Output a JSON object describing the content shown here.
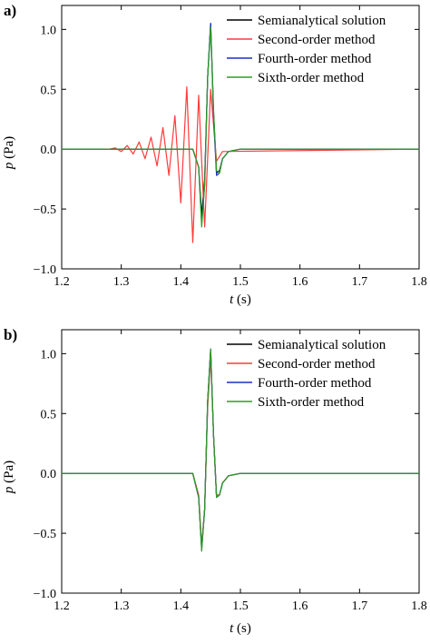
{
  "colors": {
    "semianalytical": "#000000",
    "second_order": "#ff3b3b",
    "fourth_order": "#1a2fc8",
    "sixth_order": "#2e9e22"
  },
  "chart_data": [
    {
      "type": "line",
      "panel_label": "a)",
      "xlabel_var": "t",
      "xlabel_unit": "(s)",
      "ylabel_var": "p",
      "ylabel_unit": "(Pa)",
      "xlim": [
        1.2,
        1.8
      ],
      "ylim": [
        -1.0,
        1.2
      ],
      "xticks": [
        1.2,
        1.3,
        1.4,
        1.5,
        1.6,
        1.7,
        1.8
      ],
      "xtick_labels": [
        "1.2",
        "1.3",
        "1.4",
        "1.5",
        "1.6",
        "1.7",
        "1.8"
      ],
      "yticks": [
        1.0,
        0.5,
        0.0,
        -0.5,
        -1.0
      ],
      "ytick_labels": [
        "1.0",
        "0.5",
        "0.0",
        "−0.5",
        "−1.0"
      ],
      "legend_position": "top-right",
      "series": [
        {
          "name": "Semianalytical solution",
          "color_key": "semianalytical",
          "x": [
            1.2,
            1.42,
            1.43,
            1.435,
            1.44,
            1.445,
            1.45,
            1.455,
            1.46,
            1.465,
            1.47,
            1.48,
            1.5,
            1.8
          ],
          "y": [
            0,
            0,
            -0.15,
            -0.55,
            -0.25,
            0.6,
            1.05,
            0.3,
            -0.2,
            -0.18,
            -0.08,
            -0.02,
            0,
            0
          ]
        },
        {
          "name": "Second-order method",
          "color_key": "second_order",
          "x": [
            1.2,
            1.28,
            1.29,
            1.3,
            1.31,
            1.32,
            1.33,
            1.34,
            1.35,
            1.36,
            1.37,
            1.38,
            1.39,
            1.4,
            1.41,
            1.42,
            1.43,
            1.44,
            1.45,
            1.46,
            1.47,
            1.8
          ],
          "y": [
            0,
            0,
            0.01,
            -0.02,
            0.03,
            -0.04,
            0.06,
            -0.08,
            0.1,
            -0.14,
            0.18,
            -0.22,
            0.28,
            -0.45,
            0.52,
            -0.78,
            0.45,
            -0.65,
            0.5,
            -0.1,
            -0.02,
            0
          ]
        },
        {
          "name": "Fourth-order method",
          "color_key": "fourth_order",
          "x": [
            1.2,
            1.42,
            1.43,
            1.435,
            1.44,
            1.445,
            1.45,
            1.455,
            1.46,
            1.465,
            1.47,
            1.48,
            1.5,
            1.8
          ],
          "y": [
            0,
            0,
            -0.15,
            -0.62,
            -0.3,
            0.6,
            1.05,
            0.25,
            -0.22,
            -0.2,
            -0.08,
            -0.02,
            0,
            0
          ]
        },
        {
          "name": "Sixth-order method",
          "color_key": "sixth_order",
          "x": [
            1.2,
            1.42,
            1.43,
            1.435,
            1.44,
            1.445,
            1.45,
            1.455,
            1.46,
            1.465,
            1.47,
            1.48,
            1.5,
            1.8
          ],
          "y": [
            0,
            0,
            -0.15,
            -0.65,
            -0.3,
            0.6,
            1.02,
            0.3,
            -0.18,
            -0.2,
            -0.08,
            -0.02,
            0,
            0
          ]
        }
      ]
    },
    {
      "type": "line",
      "panel_label": "b)",
      "xlabel_var": "t",
      "xlabel_unit": "(s)",
      "ylabel_var": "p",
      "ylabel_unit": "(Pa)",
      "xlim": [
        1.2,
        1.8
      ],
      "ylim": [
        -1.0,
        1.2
      ],
      "xticks": [
        1.2,
        1.3,
        1.4,
        1.5,
        1.6,
        1.7,
        1.8
      ],
      "xtick_labels": [
        "1.2",
        "1.3",
        "1.4",
        "1.5",
        "1.6",
        "1.7",
        "1.8"
      ],
      "yticks": [
        1.0,
        0.5,
        0.0,
        -0.5,
        -1.0
      ],
      "ytick_labels": [
        "1.0",
        "0.5",
        "0.0",
        "−0.5",
        "−1.0"
      ],
      "legend_position": "top-right",
      "series": [
        {
          "name": "Semianalytical solution",
          "color_key": "semianalytical",
          "x": [
            1.2,
            1.42,
            1.43,
            1.435,
            1.44,
            1.445,
            1.45,
            1.455,
            1.46,
            1.465,
            1.47,
            1.48,
            1.5,
            1.8
          ],
          "y": [
            0,
            0,
            -0.2,
            -0.62,
            -0.3,
            0.6,
            1.03,
            0.3,
            -0.2,
            -0.18,
            -0.08,
            -0.02,
            0,
            0
          ]
        },
        {
          "name": "Second-order method",
          "color_key": "second_order",
          "x": [
            1.2,
            1.42,
            1.43,
            1.435,
            1.44,
            1.445,
            1.45,
            1.455,
            1.46,
            1.465,
            1.47,
            1.48,
            1.5,
            1.8
          ],
          "y": [
            0,
            0,
            -0.18,
            -0.6,
            -0.3,
            0.55,
            0.98,
            0.3,
            -0.18,
            -0.18,
            -0.08,
            -0.02,
            0,
            0
          ]
        },
        {
          "name": "Fourth-order method",
          "color_key": "fourth_order",
          "x": [
            1.2,
            1.42,
            1.43,
            1.435,
            1.44,
            1.445,
            1.45,
            1.455,
            1.46,
            1.465,
            1.47,
            1.48,
            1.5,
            1.8
          ],
          "y": [
            0,
            0,
            -0.2,
            -0.64,
            -0.3,
            0.6,
            1.04,
            0.3,
            -0.2,
            -0.18,
            -0.08,
            -0.02,
            0,
            0
          ]
        },
        {
          "name": "Sixth-order method",
          "color_key": "sixth_order",
          "x": [
            1.2,
            1.42,
            1.43,
            1.435,
            1.44,
            1.445,
            1.45,
            1.455,
            1.46,
            1.465,
            1.47,
            1.48,
            1.5,
            1.8
          ],
          "y": [
            0,
            0,
            -0.2,
            -0.65,
            -0.3,
            0.6,
            1.04,
            0.3,
            -0.2,
            -0.18,
            -0.08,
            -0.02,
            0,
            0
          ]
        }
      ]
    }
  ]
}
